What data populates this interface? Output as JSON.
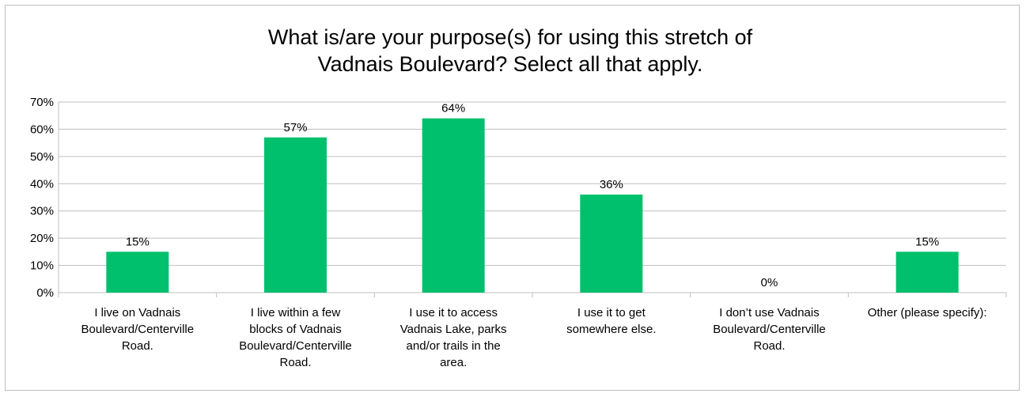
{
  "chart_data": {
    "type": "bar",
    "title_lines": [
      "What is/are your purpose(s) for using this stretch of",
      "Vadnais Boulevard? Select all that apply."
    ],
    "categories": [
      [
        "I live on Vadnais",
        "Boulevard/Centerville",
        "Road."
      ],
      [
        "I live within a few",
        "blocks of Vadnais",
        "Boulevard/Centerville",
        "Road."
      ],
      [
        "I use it to access",
        "Vadnais Lake, parks",
        "and/or trails in the",
        "area."
      ],
      [
        "I use it to get",
        "somewhere else."
      ],
      [
        "I don’t use Vadnais",
        "Boulevard/Centerville",
        "Road."
      ],
      [
        "Other (please specify):"
      ]
    ],
    "values": [
      15,
      57,
      64,
      36,
      0,
      15
    ],
    "data_labels": [
      "15%",
      "57%",
      "64%",
      "36%",
      "0%",
      "15%"
    ],
    "ylim": [
      0,
      70
    ],
    "yticks": [
      0,
      10,
      20,
      30,
      40,
      50,
      60,
      70
    ],
    "ytick_labels": [
      "0%",
      "10%",
      "20%",
      "30%",
      "40%",
      "50%",
      "60%",
      "70%"
    ],
    "xlabel": "",
    "ylabel": "",
    "grid": true,
    "legend": "none",
    "bar_color": "#00c06d",
    "grid_color": "#bfbfbf"
  }
}
